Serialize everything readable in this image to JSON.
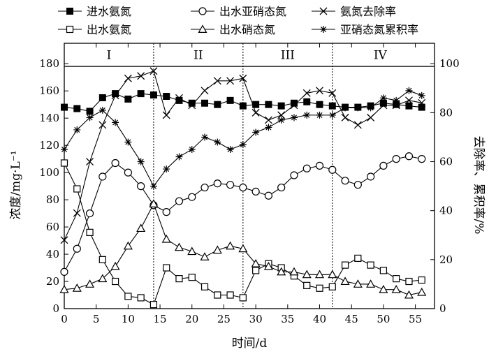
{
  "chart_data": {
    "type": "line",
    "xlabel": "时间/d",
    "ylabel_left": "浓度/mg·L⁻¹",
    "ylabel_right": "去除率、累积率/%",
    "xlim": [
      0,
      58
    ],
    "ylim_left": [
      0,
      195
    ],
    "ylim_right": [
      0,
      108.33
    ],
    "x_ticks": [
      0,
      5,
      10,
      15,
      20,
      25,
      30,
      35,
      40,
      45,
      50,
      55
    ],
    "y_left_ticks": [
      0,
      20,
      40,
      60,
      80,
      100,
      120,
      140,
      160,
      180
    ],
    "y_right_ticks": [
      0,
      20,
      40,
      60,
      80,
      100
    ],
    "phase_boundaries": [
      14,
      28,
      42
    ],
    "phase_header_top": 178,
    "phases": [
      {
        "label": "I",
        "x_center": 7
      },
      {
        "label": "II",
        "x_center": 21
      },
      {
        "label": "III",
        "x_center": 35
      },
      {
        "label": "IV",
        "x_center": 49.5
      }
    ],
    "legend": [
      {
        "label": "进水氨氮",
        "series": 0
      },
      {
        "label": "出水亚硝态氮",
        "series": 2
      },
      {
        "label": "氨氮去除率",
        "series": 4
      },
      {
        "label": "出水氨氮",
        "series": 1
      },
      {
        "label": "出水硝态氮",
        "series": 3
      },
      {
        "label": "亚硝态氮累积率",
        "series": 5
      }
    ],
    "series": [
      {
        "name": "进水氨氮",
        "axis": "left",
        "marker": "filled-square",
        "x": [
          0,
          2,
          4,
          6,
          8,
          10,
          12,
          14,
          16,
          18,
          20,
          22,
          24,
          26,
          28,
          30,
          32,
          34,
          36,
          38,
          40,
          42,
          44,
          46,
          48,
          50,
          52,
          54,
          56
        ],
        "y": [
          148,
          147,
          145,
          155,
          158,
          154,
          158,
          157,
          156,
          153,
          151,
          151,
          150,
          153,
          149,
          150,
          150,
          149,
          151,
          152,
          150,
          149,
          148,
          148,
          149,
          151,
          150,
          149,
          148
        ]
      },
      {
        "name": "出水氨氮",
        "axis": "left",
        "marker": "open-square",
        "x": [
          0,
          2,
          4,
          6,
          8,
          10,
          12,
          14,
          16,
          18,
          20,
          22,
          24,
          26,
          28,
          30,
          32,
          34,
          36,
          38,
          40,
          42,
          44,
          46,
          48,
          50,
          52,
          54,
          56
        ],
        "y": [
          107,
          88,
          56,
          36,
          20,
          9,
          8,
          3,
          30,
          22,
          23,
          16,
          10,
          10,
          8,
          28,
          33,
          30,
          24,
          17,
          15,
          16,
          32,
          37,
          32,
          28,
          22,
          20,
          21
        ]
      },
      {
        "name": "出水亚硝态氮",
        "axis": "left",
        "marker": "open-circle",
        "x": [
          0,
          2,
          4,
          6,
          8,
          10,
          12,
          14,
          16,
          18,
          20,
          22,
          24,
          26,
          28,
          30,
          32,
          34,
          36,
          38,
          40,
          42,
          44,
          46,
          48,
          50,
          52,
          54,
          56
        ],
        "y": [
          27,
          44,
          70,
          97,
          107,
          100,
          90,
          76,
          71,
          79,
          82,
          89,
          92,
          91,
          89,
          86,
          83,
          89,
          98,
          103,
          105,
          102,
          94,
          91,
          97,
          105,
          110,
          112,
          110
        ]
      },
      {
        "name": "出水硝态氮",
        "axis": "left",
        "marker": "open-triangle",
        "x": [
          0,
          2,
          4,
          6,
          8,
          10,
          12,
          14,
          16,
          18,
          20,
          22,
          24,
          26,
          28,
          30,
          32,
          34,
          36,
          38,
          40,
          42,
          44,
          46,
          48,
          50,
          52,
          54,
          56
        ],
        "y": [
          14,
          15,
          18,
          22,
          31,
          46,
          59,
          77,
          51,
          45,
          42,
          38,
          43,
          46,
          44,
          33,
          31,
          27,
          27,
          25,
          25,
          25,
          20,
          18,
          18,
          14,
          14,
          10,
          12
        ]
      },
      {
        "name": "氨氮去除率",
        "axis": "right",
        "marker": "x",
        "x": [
          0,
          2,
          4,
          6,
          8,
          10,
          12,
          14,
          16,
          18,
          20,
          22,
          24,
          26,
          28,
          30,
          32,
          34,
          36,
          38,
          40,
          42,
          44,
          46,
          48,
          50,
          52,
          54,
          56
        ],
        "y": [
          28,
          39,
          60,
          75,
          87,
          94,
          95,
          97,
          79,
          86,
          83,
          89,
          93,
          93,
          94,
          80,
          77,
          79,
          83,
          88,
          89,
          88,
          78,
          75,
          78,
          83,
          83,
          85,
          84
        ]
      },
      {
        "name": "亚硝态氮累积率",
        "axis": "right",
        "marker": "asterisk",
        "x": [
          0,
          2,
          4,
          6,
          8,
          10,
          12,
          14,
          16,
          18,
          20,
          22,
          24,
          26,
          28,
          30,
          32,
          34,
          36,
          38,
          40,
          42,
          44,
          46,
          48,
          50,
          52,
          54,
          56
        ],
        "y": [
          65,
          73,
          78,
          81,
          76,
          68,
          60,
          50,
          57,
          62,
          65,
          70,
          68,
          65,
          67,
          72,
          74,
          77,
          78,
          79,
          79,
          79,
          82,
          82,
          82,
          86,
          85,
          89,
          87
        ]
      }
    ]
  }
}
